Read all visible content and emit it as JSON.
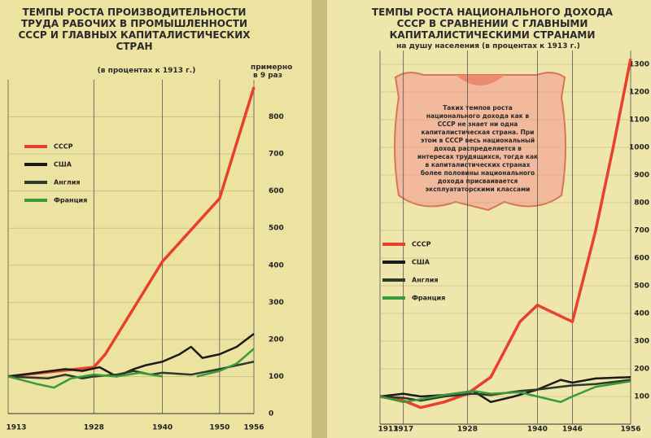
{
  "chart_data": [
    {
      "type": "line",
      "title": "ТЕМПЫ РОСТА ПРОИЗВОДИТЕЛЬНОСТИ ТРУДА РАБОЧИХ В ПРОМЫШЛЕННОСТИ СССР И ГЛАВНЫХ КАПИТАЛИСТИЧЕСКИХ СТРАН",
      "subtitle": "(в процентах к 1913 г.)",
      "annotation": "примерно в 9 раз",
      "xlim": [
        1913,
        1956
      ],
      "xticks": [
        1913,
        1928,
        1940,
        1950,
        1956
      ],
      "ylim": [
        0,
        900
      ],
      "yticks": [
        0,
        100,
        200,
        300,
        400,
        500,
        600,
        700,
        800
      ],
      "series": [
        {
          "name": "СССР",
          "color": "#e8402c",
          "x": [
            1913,
            1928,
            1930,
            1940,
            1950,
            1956
          ],
          "values": [
            100,
            125,
            160,
            410,
            580,
            880
          ]
        },
        {
          "name": "США",
          "color": "#1a1a1a",
          "x": [
            1913,
            1918,
            1923,
            1926,
            1929,
            1932,
            1935,
            1937,
            1940,
            1943,
            1945,
            1947,
            1950,
            1953,
            1956
          ],
          "values": [
            100,
            110,
            120,
            115,
            125,
            100,
            120,
            130,
            140,
            160,
            180,
            150,
            160,
            180,
            215
          ]
        },
        {
          "name": "Англия",
          "color": "#2b3a2a",
          "x": [
            1913,
            1920,
            1923,
            1926,
            1928,
            1932,
            1935,
            1938,
            1940,
            1945,
            1950,
            1956
          ],
          "values": [
            100,
            95,
            105,
            95,
            100,
            105,
            115,
            105,
            110,
            105,
            120,
            140
          ]
        },
        {
          "name": "Франция",
          "color": "#3a9a3a",
          "x": [
            1913,
            1918,
            1921,
            1924,
            1928,
            1932,
            1936,
            1940,
            1943,
            1946,
            1950,
            1953,
            1956
          ],
          "values": [
            100,
            80,
            70,
            95,
            105,
            100,
            110,
            100,
            null,
            100,
            115,
            135,
            175
          ]
        }
      ]
    },
    {
      "type": "line",
      "title": "ТЕМПЫ РОСТА НАЦИОНАЛЬНОГО ДОХОДА СССР В СРАВНЕНИИ С ГЛАВНЫМИ КАПИТАЛИСТИЧЕСКИМИ СТРАНАМИ",
      "subtitle": "на душу населения (в процентах к 1913 г.)",
      "note": "Таких темпов роста национального дохода как в СССР не знает ни одна капиталистическая страна. При этом в СССР весь национальный доход распределяется в интересах трудящихся, тогда как в капиталистических странах более половины национального дохода присваивается эксплуататорскими классами",
      "xlim": [
        1913,
        1956
      ],
      "xticks": [
        1913,
        1917,
        1928,
        1940,
        1946,
        1956
      ],
      "ylim": [
        0,
        1350
      ],
      "yticks": [
        100,
        200,
        300,
        400,
        500,
        600,
        700,
        800,
        900,
        1000,
        1100,
        1200,
        1300
      ],
      "series": [
        {
          "name": "СССР",
          "color": "#e8402c",
          "x": [
            1913,
            1917,
            1920,
            1924,
            1928,
            1932,
            1937,
            1940,
            1946,
            1950,
            1953,
            1956
          ],
          "values": [
            100,
            85,
            60,
            80,
            110,
            170,
            370,
            430,
            370,
            700,
            1000,
            1320
          ]
        },
        {
          "name": "США",
          "color": "#1a1a1a",
          "x": [
            1913,
            1917,
            1920,
            1924,
            1929,
            1932,
            1936,
            1940,
            1944,
            1946,
            1950,
            1956
          ],
          "values": [
            100,
            110,
            100,
            105,
            120,
            80,
            100,
            125,
            160,
            150,
            165,
            170
          ]
        },
        {
          "name": "Англия",
          "color": "#2b3a2a",
          "x": [
            1913,
            1917,
            1920,
            1924,
            1929,
            1932,
            1937,
            1940,
            1946,
            1950,
            1956
          ],
          "values": [
            100,
            95,
            85,
            100,
            110,
            105,
            120,
            125,
            140,
            145,
            160
          ]
        },
        {
          "name": "Франция",
          "color": "#3a9a3a",
          "x": [
            1913,
            1917,
            1920,
            1924,
            1929,
            1932,
            1937,
            1940,
            1944,
            1946,
            1950,
            1956
          ],
          "values": [
            100,
            80,
            90,
            105,
            120,
            110,
            115,
            100,
            80,
            100,
            135,
            155
          ]
        }
      ]
    }
  ]
}
